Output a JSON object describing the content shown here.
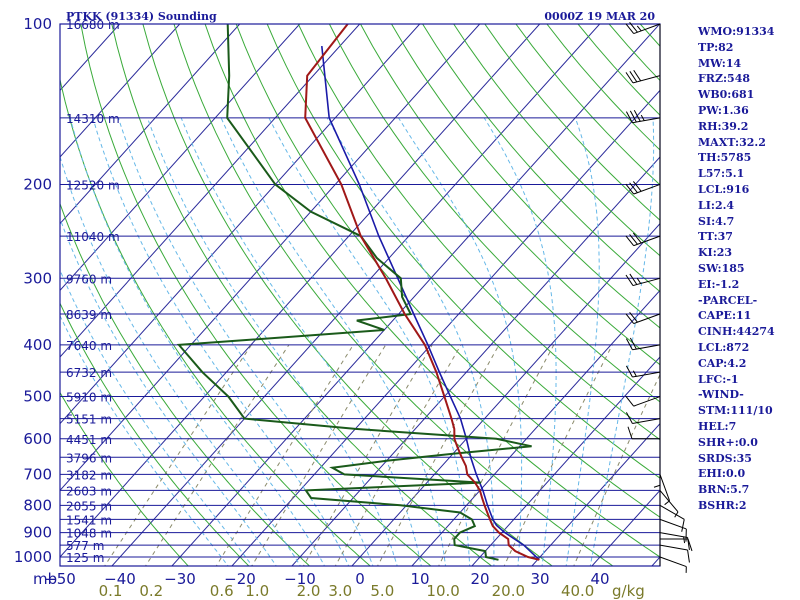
{
  "title_left": "PTKK (91334) Sounding",
  "title_right": "0000Z 19 MAR 20",
  "stats": [
    "WMO:91334",
    "TP:82",
    "MW:14",
    "FRZ:548",
    "WB0:681",
    "PW:1.36",
    "RH:39.2",
    "MAXT:32.2",
    "TH:5785",
    "L57:5.1",
    "LCL:916",
    "LI:2.4",
    "SI:4.7",
    "TT:37",
    "KI:23",
    "SW:185",
    "EI:-1.2",
    "-PARCEL-",
    "CAPE:11",
    "CINH:44274",
    "LCL:872",
    "CAP:4.2",
    "LFC:-1",
    "-WIND-",
    "STM:111/10",
    "HEL:7",
    "SHR+:0.0",
    "SRDS:35",
    "EHI:0.0",
    "BRN:5.7",
    "BSHR:2"
  ],
  "colors": {
    "isobar": "#1a1a99",
    "isotherm": "#2a2a9a",
    "dry_adiabat": "#3aaa3a",
    "moist_adiabat": "#66b8e8",
    "mixing_ratio": "#8a8a6a",
    "temperature": "#a01818",
    "dewpoint": "#1a5a1a",
    "parcel": "#1a1aa8",
    "wind": "#000000"
  },
  "chart_data": {
    "type": "skew-t",
    "pressure_unit_label": "mb",
    "mixing_ratio_unit_label": "g/kg",
    "pressure_ticks": [
      100,
      200,
      300,
      400,
      500,
      600,
      700,
      800,
      900,
      1000
    ],
    "temperature_ticks": [
      -50,
      -40,
      -30,
      -20,
      -10,
      0,
      10,
      20,
      30,
      40
    ],
    "temperature_range": [
      -50,
      50
    ],
    "mixing_ratio_labels": [
      "0.1",
      "0.2",
      "0.6",
      "1.0",
      "2.0",
      "3.0",
      "5.0",
      "10.0",
      "20.0",
      "40.0"
    ],
    "height_labels": [
      {
        "p": 100,
        "label": "16680 m"
      },
      {
        "p": 150,
        "label": "14310 m"
      },
      {
        "p": 200,
        "label": "12520 m"
      },
      {
        "p": 250,
        "label": "11040 m"
      },
      {
        "p": 300,
        "label": "9760 m"
      },
      {
        "p": 350,
        "label": "8639 m"
      },
      {
        "p": 400,
        "label": "7640 m"
      },
      {
        "p": 450,
        "label": "6732 m"
      },
      {
        "p": 500,
        "label": "5910 m"
      },
      {
        "p": 550,
        "label": "5151 m"
      },
      {
        "p": 600,
        "label": "4451 m"
      },
      {
        "p": 650,
        "label": "3796 m"
      },
      {
        "p": 700,
        "label": "3182 m"
      },
      {
        "p": 750,
        "label": "2603 m"
      },
      {
        "p": 800,
        "label": "2055 m"
      },
      {
        "p": 850,
        "label": "1541 m"
      },
      {
        "p": 900,
        "label": "1048 m"
      },
      {
        "p": 950,
        "label": "577 m"
      },
      {
        "p": 1000,
        "label": "125 m"
      }
    ],
    "temperature_profile": [
      [
        1012,
        30.3
      ],
      [
        1000,
        28
      ],
      [
        975,
        25
      ],
      [
        950,
        23
      ],
      [
        925,
        22
      ],
      [
        900,
        19.5
      ],
      [
        875,
        17.5
      ],
      [
        850,
        16
      ],
      [
        800,
        13
      ],
      [
        775,
        11.5
      ],
      [
        750,
        10
      ],
      [
        725,
        8
      ],
      [
        700,
        5.5
      ],
      [
        675,
        4
      ],
      [
        650,
        2
      ],
      [
        625,
        0
      ],
      [
        600,
        -2
      ],
      [
        575,
        -3.5
      ],
      [
        550,
        -5.5
      ],
      [
        500,
        -10
      ],
      [
        450,
        -15
      ],
      [
        400,
        -21
      ],
      [
        350,
        -29
      ],
      [
        300,
        -37.5
      ],
      [
        250,
        -48
      ],
      [
        200,
        -59
      ],
      [
        150,
        -75
      ],
      [
        125,
        -81
      ],
      [
        100,
        -82
      ]
    ],
    "dewpoint_profile": [
      [
        1012,
        23.5
      ],
      [
        1000,
        21
      ],
      [
        975,
        20
      ],
      [
        950,
        14
      ],
      [
        925,
        13
      ],
      [
        900,
        13
      ],
      [
        875,
        14.5
      ],
      [
        850,
        13
      ],
      [
        825,
        10
      ],
      [
        800,
        -1
      ],
      [
        775,
        -17
      ],
      [
        750,
        -19
      ],
      [
        725,
        9
      ],
      [
        700,
        -15
      ],
      [
        680,
        -18
      ],
      [
        660,
        -10
      ],
      [
        640,
        0
      ],
      [
        620,
        12
      ],
      [
        600,
        5
      ],
      [
        575,
        -20
      ],
      [
        550,
        -40
      ],
      [
        500,
        -46
      ],
      [
        450,
        -54
      ],
      [
        400,
        -62
      ],
      [
        375,
        -30
      ],
      [
        360,
        -36
      ],
      [
        350,
        -28
      ],
      [
        325,
        -32
      ],
      [
        300,
        -35
      ],
      [
        275,
        -42
      ],
      [
        250,
        -48
      ],
      [
        225,
        -60
      ],
      [
        200,
        -70
      ],
      [
        150,
        -88
      ],
      [
        125,
        -94
      ],
      [
        100,
        -102
      ]
    ],
    "parcel_profile": [
      [
        1012,
        30.3
      ],
      [
        950,
        25.5
      ],
      [
        900,
        20.5
      ],
      [
        872,
        18
      ],
      [
        850,
        16.5
      ],
      [
        800,
        13.5
      ],
      [
        750,
        10.5
      ],
      [
        700,
        7
      ],
      [
        650,
        3.5
      ],
      [
        600,
        0
      ],
      [
        550,
        -4
      ],
      [
        500,
        -9
      ],
      [
        450,
        -14.5
      ],
      [
        400,
        -20.5
      ],
      [
        350,
        -27.5
      ],
      [
        300,
        -35.5
      ],
      [
        250,
        -45
      ],
      [
        200,
        -56
      ],
      [
        150,
        -71
      ],
      [
        110,
        -83
      ]
    ],
    "wind_profile": [
      {
        "p": 1000,
        "dir": 110,
        "spd": 5
      },
      {
        "p": 950,
        "dir": 100,
        "spd": 10
      },
      {
        "p": 925,
        "dir": 90,
        "spd": 10
      },
      {
        "p": 900,
        "dir": 100,
        "spd": 15
      },
      {
        "p": 850,
        "dir": 110,
        "spd": 10
      },
      {
        "p": 800,
        "dir": 120,
        "spd": 10
      },
      {
        "p": 750,
        "dir": 140,
        "spd": 5
      },
      {
        "p": 700,
        "dir": 160,
        "spd": 5
      },
      {
        "p": 650,
        "dir": 180,
        "spd": 5
      },
      {
        "p": 600,
        "dir": 270,
        "spd": 10
      },
      {
        "p": 550,
        "dir": 260,
        "spd": 10
      },
      {
        "p": 500,
        "dir": 250,
        "spd": 10
      },
      {
        "p": 450,
        "dir": 260,
        "spd": 15
      },
      {
        "p": 400,
        "dir": 260,
        "spd": 20
      },
      {
        "p": 350,
        "dir": 250,
        "spd": 20
      },
      {
        "p": 300,
        "dir": 255,
        "spd": 25
      },
      {
        "p": 250,
        "dir": 250,
        "spd": 30
      },
      {
        "p": 200,
        "dir": 250,
        "spd": 30
      },
      {
        "p": 150,
        "dir": 260,
        "spd": 35
      },
      {
        "p": 125,
        "dir": 255,
        "spd": 30
      },
      {
        "p": 100,
        "dir": 250,
        "spd": 25
      }
    ]
  }
}
